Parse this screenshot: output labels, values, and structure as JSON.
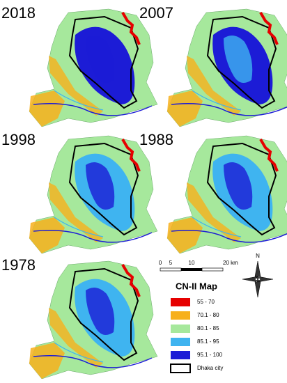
{
  "panels": [
    "2018",
    "2007",
    "1998",
    "1988",
    "1978"
  ],
  "scale": {
    "labels": [
      "0",
      "5",
      "10",
      "20 km"
    ]
  },
  "north": "N",
  "legend": {
    "title": "CN-II Map",
    "items": [
      {
        "label": "55 - 70",
        "color": "#e60000"
      },
      {
        "label": "70.1 - 80",
        "color": "#f7b01c"
      },
      {
        "label": "80.1 - 85",
        "color": "#a6e89c"
      },
      {
        "label": "85.1 - 95",
        "color": "#3fb4f0"
      },
      {
        "label": "95.1 - 100",
        "color": "#1c1cd6"
      },
      {
        "label": "Dhaka city",
        "color": "#ffffff"
      }
    ]
  }
}
